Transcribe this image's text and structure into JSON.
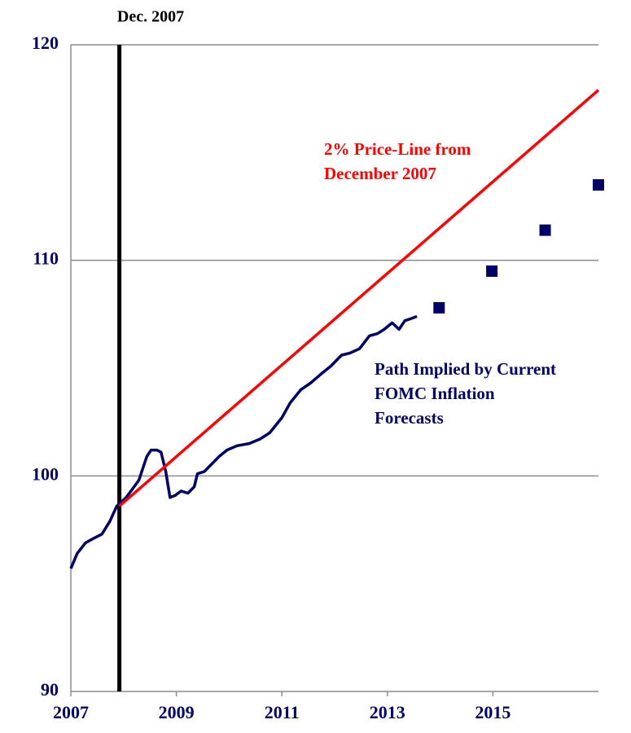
{
  "chart_data": {
    "type": "line",
    "xlim": [
      2007,
      2017
    ],
    "xticks": [
      2007,
      2009,
      2011,
      2013,
      2015
    ],
    "ylim": [
      90,
      120
    ],
    "yticks": [
      90,
      100,
      110,
      120
    ],
    "grid": true,
    "vline": {
      "x": 2007.92,
      "label": "Dec. 2007",
      "color": "#000000"
    },
    "series": [
      {
        "style": "line",
        "color": "#000066",
        "x": [
          2007.0,
          2007.12,
          2007.28,
          2007.43,
          2007.59,
          2007.74,
          2007.87,
          2008.05,
          2008.29,
          2008.44,
          2008.52,
          2008.63,
          2008.71,
          2008.8,
          2008.88,
          2008.98,
          2009.09,
          2009.22,
          2009.34,
          2009.4,
          2009.53,
          2009.65,
          2009.81,
          2009.96,
          2010.15,
          2010.38,
          2010.58,
          2010.77,
          2011.0,
          2011.16,
          2011.36,
          2011.54,
          2011.73,
          2011.93,
          2012.13,
          2012.29,
          2012.47,
          2012.66,
          2012.81,
          2012.94,
          2013.09,
          2013.22,
          2013.33,
          2013.45,
          2013.56
        ],
        "values": [
          95.7,
          96.4,
          96.9,
          97.1,
          97.3,
          97.9,
          98.6,
          99.0,
          99.8,
          100.9,
          101.2,
          101.2,
          101.1,
          100.2,
          99.0,
          99.1,
          99.3,
          99.2,
          99.5,
          100.1,
          100.2,
          100.5,
          100.9,
          101.2,
          101.4,
          101.5,
          101.7,
          102.0,
          102.7,
          103.4,
          104.0,
          104.3,
          104.7,
          105.1,
          105.6,
          105.7,
          105.9,
          106.5,
          106.6,
          106.8,
          107.1,
          106.8,
          107.2,
          107.3,
          107.4
        ]
      },
      {
        "style": "markers",
        "color": "#000066",
        "x": [
          2013.98,
          2014.98,
          2015.99,
          2017.0
        ],
        "values": [
          107.8,
          109.5,
          111.4,
          113.5
        ]
      },
      {
        "style": "line",
        "color": "#ff0000",
        "x": [
          2007.92,
          2017.0
        ],
        "values": [
          98.6,
          117.9
        ]
      }
    ],
    "annotations": [
      {
        "lines": [
          "2% Price-Line from",
          "December 2007"
        ],
        "color": "#ff0000"
      },
      {
        "lines": [
          "Path Implied by Current",
          "FOMC Inflation",
          "Forecasts"
        ],
        "color": "#000066"
      }
    ]
  }
}
